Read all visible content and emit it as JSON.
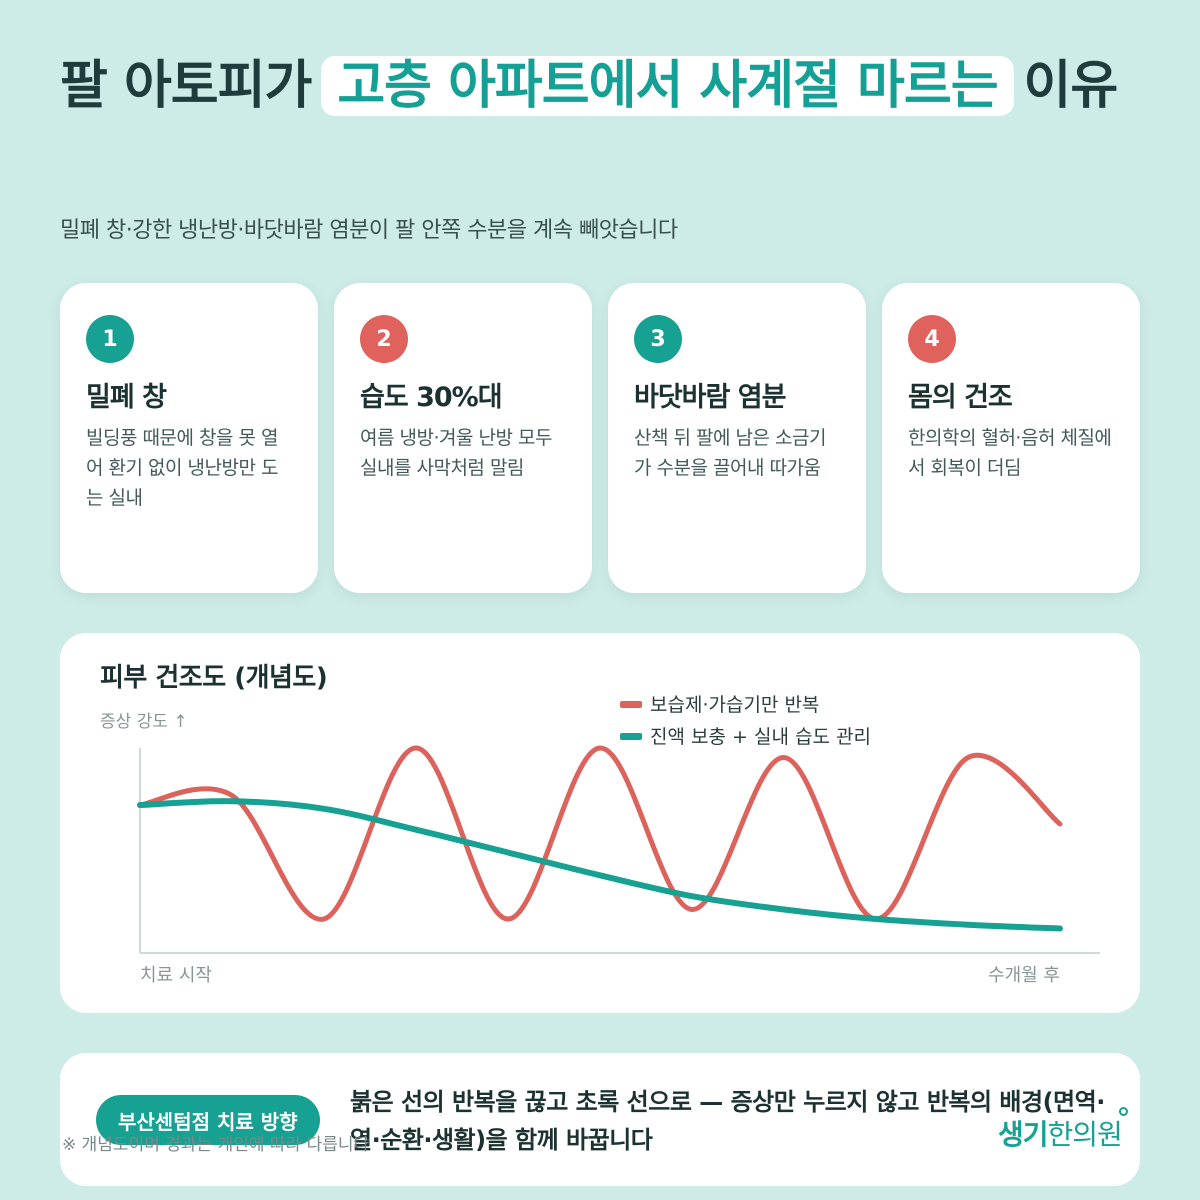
{
  "header": {
    "title_before": "팔 아토피가",
    "title_highlight": "고층 아파트에서 사계절 마르는",
    "title_after": "이유",
    "subtitle": "밀폐 창·강한 냉난방·바닷바람 염분이 팔 안쪽 수분을 계속 빼앗습니다"
  },
  "cards": [
    {
      "number": "1",
      "title": "밀폐 창",
      "desc": "빌딩풍 때문에 창을 못 열어 환기 없이 냉난방만 도는 실내",
      "color": "#16a192"
    },
    {
      "number": "2",
      "title": "습도 30%대",
      "desc": "여름 냉방·겨울 난방 모두 실내를 사막처럼 말림",
      "color": "#e0625d"
    },
    {
      "number": "3",
      "title": "바닷바람 염분",
      "desc": "산책 뒤 팔에 남은 소금기가 수분을 끌어내 따가움",
      "color": "#16a192"
    },
    {
      "number": "4",
      "title": "몸의 건조",
      "desc": "한의학의 혈허·음허 체질에서 회복이 더딤",
      "color": "#e0625d"
    }
  ],
  "chart": {
    "title": "피부 건조도 (개념도)",
    "y_label": "증상 강도 ↑",
    "x_start_label": "치료 시작",
    "x_end_label": "수개월 후"
  },
  "chart_data": {
    "type": "line",
    "title": "피부 건조도 (개념도)",
    "ylabel": "증상 강도 ↑",
    "x_tick_labels": [
      "치료 시작",
      "수개월 후"
    ],
    "legend_position": "top-right",
    "grid": false,
    "x": [
      0,
      0.1,
      0.2,
      0.3,
      0.4,
      0.5,
      0.6,
      0.7,
      0.8,
      0.9,
      1.0
    ],
    "series": [
      {
        "name": "보습제·가습기만 반복",
        "color": "#dc625c",
        "values": [
          0.7,
          0.75,
          0.1,
          1.0,
          0.1,
          1.0,
          0.15,
          0.95,
          0.1,
          0.95,
          0.6
        ]
      },
      {
        "name": "진액 보충 + 실내 습도 관리",
        "color": "#16a192",
        "values": [
          0.7,
          0.72,
          0.68,
          0.57,
          0.45,
          0.33,
          0.22,
          0.15,
          0.1,
          0.07,
          0.05
        ]
      }
    ]
  },
  "bottom": {
    "badge": "부산센텀점 치료 방향",
    "message": "붉은 선의 반복을 끊고 초록 선으로 — 증상만 누르지 않고 반복의 배경(면역·열·순환·생활)을 함께 바꿉니다",
    "footnote": "※ 개념도이며 경과는 개인에 따라 다릅니다",
    "logo_part1": "생기",
    "logo_part2": "한의원"
  }
}
